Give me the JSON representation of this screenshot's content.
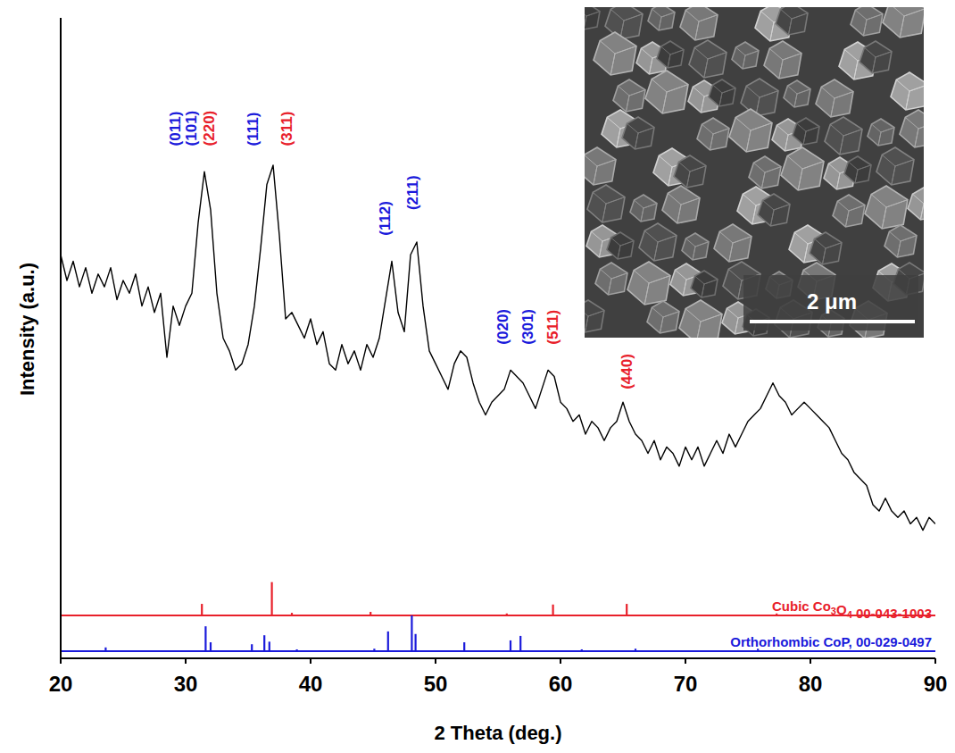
{
  "chart_data": {
    "type": "line",
    "x_label": "2 Theta (deg.)",
    "y_label": "Intensity (a.u.)",
    "xlim": [
      20,
      90
    ],
    "xticks": [
      20,
      30,
      40,
      50,
      60,
      70,
      80,
      90
    ],
    "ylim": [
      0,
      100
    ],
    "tick_labels": "x",
    "x": [
      20,
      20.5,
      21,
      21.5,
      22,
      22.5,
      23,
      23.5,
      24,
      24.5,
      25,
      25.5,
      26,
      26.5,
      27,
      27.5,
      28,
      28.5,
      29,
      29.5,
      30,
      30.5,
      31,
      31.5,
      32,
      32.5,
      33,
      33.5,
      34,
      34.5,
      35,
      35.5,
      36,
      36.5,
      37,
      37.5,
      38,
      38.5,
      39,
      39.5,
      40,
      40.5,
      41,
      41.5,
      42,
      42.5,
      43,
      43.5,
      44,
      44.5,
      45,
      45.5,
      46,
      46.5,
      47,
      47.5,
      48,
      48.5,
      49,
      49.5,
      50,
      50.5,
      51,
      51.5,
      52,
      52.5,
      53,
      53.5,
      54,
      54.5,
      55,
      55.5,
      56,
      56.5,
      57,
      57.5,
      58,
      58.5,
      59,
      59.5,
      60,
      60.5,
      61,
      61.5,
      62,
      62.5,
      63,
      63.5,
      64,
      64.5,
      65,
      65.5,
      66,
      66.5,
      67,
      67.5,
      68,
      68.5,
      69,
      69.5,
      70,
      70.5,
      71,
      71.5,
      72,
      72.5,
      73,
      73.5,
      74,
      74.5,
      75,
      75.5,
      76,
      76.5,
      77,
      77.5,
      78,
      78.5,
      79,
      79.5,
      80,
      80.5,
      81,
      81.5,
      82,
      82.5,
      83,
      83.5,
      84,
      84.5,
      85,
      85.5,
      86,
      86.5,
      87,
      87.5,
      88,
      88.5,
      89,
      89.5,
      90
    ],
    "series": [
      {
        "color": "#000000",
        "values": [
          63,
          59,
          62,
          58,
          61,
          57,
          60,
          58,
          61,
          56,
          59,
          57,
          60,
          55,
          58,
          54,
          57,
          47,
          55,
          52,
          55,
          57,
          68,
          76,
          70,
          57,
          50,
          48,
          45,
          46,
          49,
          55,
          64,
          74,
          77,
          66,
          53,
          54,
          52,
          50,
          53,
          49,
          51,
          46,
          45,
          49,
          46,
          48,
          45,
          49,
          47,
          50,
          56,
          62,
          54,
          51,
          63,
          65,
          55,
          48,
          46,
          44,
          42,
          46,
          48,
          47,
          43,
          40,
          38,
          40,
          41,
          42,
          45,
          44,
          43,
          41,
          39,
          42,
          45,
          44,
          40,
          39,
          37,
          38,
          35,
          37,
          36,
          34,
          36,
          37,
          40,
          37,
          35,
          34,
          32,
          34,
          31,
          33,
          32,
          30,
          33,
          31,
          33,
          30,
          32,
          34,
          32,
          35,
          33,
          35,
          37,
          38,
          39,
          41,
          43,
          41,
          40,
          38,
          39,
          40,
          39,
          38,
          37,
          36,
          34,
          32,
          31,
          29,
          28,
          27,
          24,
          23,
          25,
          23,
          22,
          23,
          21,
          22,
          20,
          22,
          21
        ]
      }
    ],
    "reference_patterns": [
      {
        "name": "Cubic Co3O4 00-043-1003",
        "type": "stick",
        "color": "#e8202a",
        "baseline": 6.7,
        "x": [
          31.3,
          36.9,
          38.5,
          44.8,
          55.7,
          59.4,
          65.3,
          74.1,
          77.3
        ],
        "values": [
          8.5,
          11.9,
          7.1,
          7.25,
          7.0,
          8.4,
          8.5,
          6.8,
          7.0
        ]
      },
      {
        "name": "Orthorhombic CoP, 00-029-0497",
        "type": "stick",
        "color": "#1a1adb",
        "baseline": 1.1,
        "x": [
          23.6,
          31.6,
          32.0,
          35.3,
          36.3,
          36.7,
          38.9,
          45.1,
          46.2,
          48.1,
          48.4,
          52.3,
          56.0,
          56.8,
          61.7,
          66.0,
          75.8
        ],
        "values": [
          1.7,
          5.0,
          2.5,
          2.2,
          3.6,
          2.6,
          1.4,
          1.5,
          4.2,
          6.7,
          3.8,
          2.5,
          2.8,
          3.5,
          1.4,
          1.5,
          1.5
        ]
      }
    ],
    "annotations": [
      {
        "text": "(011)",
        "x": 29.2,
        "y": 80,
        "color": "#1a1adb"
      },
      {
        "text": "(101)",
        "x": 30.5,
        "y": 80,
        "color": "#1a1adb"
      },
      {
        "text": "(220)",
        "x": 31.9,
        "y": 80,
        "color": "#e8202a"
      },
      {
        "text": "(111)",
        "x": 35.4,
        "y": 80,
        "color": "#1a1adb"
      },
      {
        "text": "(311)",
        "x": 38.1,
        "y": 80,
        "color": "#e8202a"
      },
      {
        "text": "(112)",
        "x": 46.0,
        "y": 66,
        "color": "#1a1adb"
      },
      {
        "text": "(211)",
        "x": 48.2,
        "y": 70,
        "color": "#1a1adb"
      },
      {
        "text": "(020)",
        "x": 55.4,
        "y": 49,
        "color": "#1a1adb"
      },
      {
        "text": "(301)",
        "x": 57.4,
        "y": 49,
        "color": "#1a1adb"
      },
      {
        "text": "(511)",
        "x": 59.4,
        "y": 49,
        "color": "#e8202a"
      },
      {
        "text": "(440)",
        "x": 65.3,
        "y": 42,
        "color": "#e8202a"
      }
    ],
    "inset": {
      "scale_bar": "2 μm"
    }
  }
}
